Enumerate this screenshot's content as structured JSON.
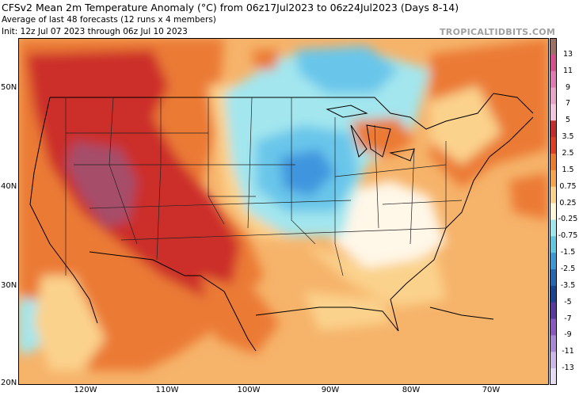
{
  "header": {
    "title": "CFSv2 Mean 2m Temperature Anomaly (°C) from 06z17Jul2023 to 06z24Jul2023 (Days 8-14)",
    "subtitle": "Average of last 48 forecasts (12 runs x 4 members)",
    "init": "Init: 12z Jul 07 2023 through 06z Jul 10 2023",
    "credit": "TROPICALTIDBITS.COM"
  },
  "axes": {
    "lat_labels": [
      "50N",
      "40N",
      "30N",
      "20N"
    ],
    "lon_labels": [
      "120W",
      "110W",
      "100W",
      "90W",
      "80W",
      "70W"
    ]
  },
  "colorbar": {
    "labels": [
      "13",
      "11",
      "9",
      "7",
      "5",
      "3.5",
      "2.5",
      "1.5",
      "0.75",
      "0.25",
      "-0.25",
      "-0.75",
      "-1.5",
      "-2.5",
      "-3.5",
      "-5",
      "-7",
      "-9",
      "-11",
      "-13"
    ],
    "colors": [
      "#a06f65",
      "#d54f8f",
      "#e07ab0",
      "#eaa2c8",
      "#f1c6de",
      "#c62b2b",
      "#de3f24",
      "#ee7a2e",
      "#f7a44e",
      "#fbd28c",
      "#fff7d8",
      "#9ee8ec",
      "#5fc7e0",
      "#3a98d4",
      "#2567b5",
      "#1b4394",
      "#5a38a2",
      "#8a58c0",
      "#a988d4",
      "#cdb6e8",
      "#e6dbf3"
    ]
  },
  "map": {
    "colors": {
      "ocean_warm": "#f6b36a",
      "strong_warm": "#cc2f2a",
      "peak_warm": "#a64d6a",
      "mid_warm": "#eb7a36",
      "light_warm": "#fbd28c",
      "neutral": "#fff7e8",
      "cool_light": "#a3e6ee",
      "cool_mid": "#69c6ea",
      "cool_strong": "#3f96de"
    }
  }
}
